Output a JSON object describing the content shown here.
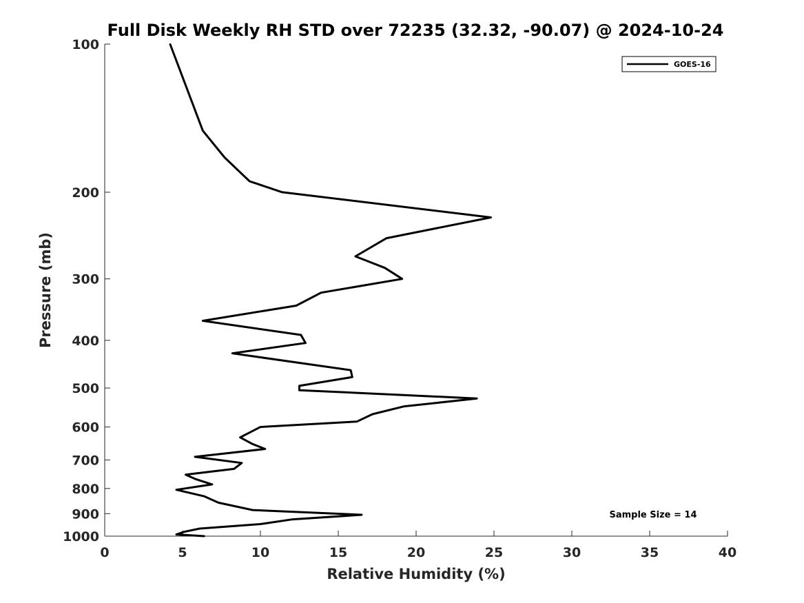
{
  "chart_data": {
    "type": "line",
    "title": "Full Disk Weekly RH STD over 72235 (32.32, -90.07) @ 2024-10-24",
    "xlabel": "Relative Humidity (%)",
    "ylabel": "Pressure (mb)",
    "xlim": [
      0,
      40
    ],
    "ylim": [
      100,
      1000
    ],
    "y_scale": "log",
    "y_reversed": true,
    "grid": false,
    "legend_position": "top-right",
    "x_ticks": [
      "0",
      "5",
      "10",
      "15",
      "20",
      "25",
      "30",
      "35",
      "40"
    ],
    "y_ticks": [
      "100",
      "200",
      "300",
      "400",
      "500",
      "600",
      "700",
      "800",
      "900",
      "1000"
    ],
    "annotation": "Sample Size = 14",
    "series": [
      {
        "name": "GOES-16",
        "color": "#000000",
        "points": [
          [
            4.2,
            100
          ],
          [
            6.3,
            150
          ],
          [
            7.7,
            170
          ],
          [
            9.3,
            190
          ],
          [
            11.4,
            200
          ],
          [
            24.8,
            225
          ],
          [
            18.1,
            248
          ],
          [
            16.1,
            270
          ],
          [
            18.0,
            285
          ],
          [
            19.1,
            300
          ],
          [
            13.9,
            320
          ],
          [
            12.3,
            340
          ],
          [
            6.3,
            365
          ],
          [
            12.6,
            390
          ],
          [
            12.9,
            405
          ],
          [
            8.2,
            425
          ],
          [
            15.8,
            460
          ],
          [
            15.9,
            475
          ],
          [
            12.5,
            495
          ],
          [
            12.5,
            505
          ],
          [
            23.9,
            525
          ],
          [
            19.2,
            545
          ],
          [
            17.2,
            565
          ],
          [
            16.2,
            585
          ],
          [
            10.0,
            600
          ],
          [
            8.7,
            630
          ],
          [
            9.5,
            650
          ],
          [
            10.3,
            665
          ],
          [
            5.8,
            690
          ],
          [
            8.8,
            710
          ],
          [
            8.3,
            730
          ],
          [
            5.2,
            750
          ],
          [
            5.8,
            765
          ],
          [
            6.9,
            785
          ],
          [
            4.6,
            805
          ],
          [
            6.4,
            830
          ],
          [
            7.3,
            855
          ],
          [
            9.5,
            885
          ],
          [
            16.5,
            905
          ],
          [
            12.0,
            925
          ],
          [
            10.0,
            945
          ],
          [
            6.1,
            965
          ],
          [
            5.1,
            980
          ],
          [
            4.6,
            992
          ],
          [
            6.4,
            1000
          ]
        ]
      }
    ]
  }
}
